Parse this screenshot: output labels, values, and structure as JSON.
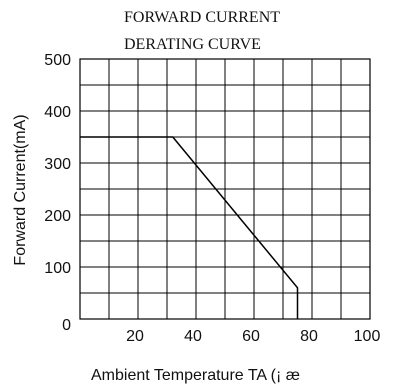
{
  "chart_data": {
    "type": "line",
    "title_lines": [
      "FORWARD CURRENT",
      "DERATING CURVE"
    ],
    "xlabel": "Ambient Temperature TA (¡ æ",
    "ylabel": "Forward Current(mA)",
    "xlim": [
      0,
      100
    ],
    "ylim": [
      0,
      500
    ],
    "xticks": [
      {
        "value": 20,
        "label": "20"
      },
      {
        "value": 40,
        "label": "40"
      },
      {
        "value": 60,
        "label": "60"
      },
      {
        "value": 80,
        "label": "80"
      },
      {
        "value": 100,
        "label": "100"
      }
    ],
    "yticks": [
      {
        "value": 0,
        "label": "0"
      },
      {
        "value": 100,
        "label": "100"
      },
      {
        "value": 200,
        "label": "200"
      },
      {
        "value": 300,
        "label": "300"
      },
      {
        "value": 400,
        "label": "400"
      },
      {
        "value": 500,
        "label": "500"
      }
    ],
    "grid": {
      "x_step": 10,
      "y_step": 50
    },
    "series": [
      {
        "x": [
          0,
          32,
          75,
          75
        ],
        "y": [
          350,
          350,
          60,
          0
        ]
      }
    ],
    "line_color": "#000000"
  }
}
